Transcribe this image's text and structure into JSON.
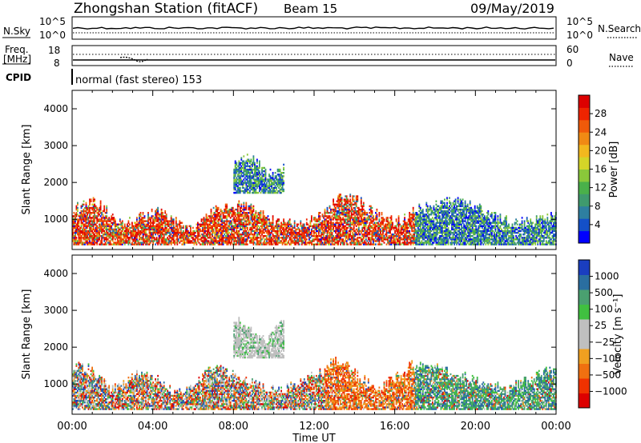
{
  "header": {
    "station": "Zhongshan Station (fitACF)",
    "beam": "Beam 15",
    "date": "09/May/2019"
  },
  "top_panels": {
    "nsky": {
      "label": "N.Sky",
      "left_ticks": [
        "10^5",
        "10^0"
      ],
      "right_ticks": [
        "10^5",
        "10^0"
      ],
      "right_label": "N.Search"
    },
    "freq": {
      "label_line1": "Freq.",
      "label_line2": "[MHz]",
      "left_ticks": [
        "18",
        "8"
      ],
      "right_ticks": [
        "60",
        "0"
      ],
      "right_label": "Nave"
    },
    "cpid": {
      "label": "CPID",
      "text": "normal (fast stereo) 153"
    }
  },
  "time_axis": {
    "ticks": [
      "00:00",
      "04:00",
      "08:00",
      "12:00",
      "16:00",
      "20:00",
      "00:00"
    ],
    "label": "Time UT"
  },
  "chart_data": [
    {
      "type": "heatmap",
      "quantity": "power",
      "ylabel": "Slant Range [km]",
      "ylim": [
        180,
        4500
      ],
      "yticks": [
        1000,
        2000,
        3000,
        4000
      ],
      "xlim_hours": [
        0,
        24
      ],
      "colorbar": {
        "label": "Power [dB]",
        "ticks": [
          "28",
          "24",
          "20",
          "16",
          "12",
          "8",
          "4"
        ],
        "range": [
          0,
          30
        ],
        "colors": [
          "#0000ff",
          "#1450c8",
          "#2e7fa0",
          "#3f9a6e",
          "#4ab04a",
          "#8ac83a",
          "#d4d428",
          "#f2b81e",
          "#f08a14",
          "#f05a0a",
          "#ee2400",
          "#dd0000"
        ]
      },
      "echo_regions": [
        {
          "t_start": 0.0,
          "t_end": 3.5,
          "r_min": 300,
          "r_max": 1600,
          "level": "high"
        },
        {
          "t_start": 3.5,
          "t_end": 6.5,
          "r_min": 300,
          "r_max": 1300,
          "level": "high"
        },
        {
          "t_start": 6.5,
          "t_end": 12.5,
          "r_min": 300,
          "r_max": 1500,
          "level": "high"
        },
        {
          "t_start": 8.0,
          "t_end": 10.5,
          "r_min": 1700,
          "r_max": 2800,
          "level": "low"
        },
        {
          "t_start": 12.5,
          "t_end": 17.0,
          "r_min": 300,
          "r_max": 1700,
          "level": "high"
        },
        {
          "t_start": 17.0,
          "t_end": 24.0,
          "r_min": 300,
          "r_max": 1600,
          "level": "low"
        }
      ]
    },
    {
      "type": "heatmap",
      "quantity": "velocity",
      "ylabel": "Slant Range [km]",
      "ylim": [
        180,
        4500
      ],
      "yticks": [
        1000,
        2000,
        3000,
        4000
      ],
      "xlim_hours": [
        0,
        24
      ],
      "colorbar": {
        "label": "Velocity [m s⁻¹]",
        "ticks": [
          "1000",
          "500",
          "100",
          "25",
          "−25",
          "−100",
          "−500",
          "−1000"
        ],
        "range": [
          -1200,
          1200
        ],
        "colors": [
          "#dd0000",
          "#f03200",
          "#f07010",
          "#f0a020",
          "#bfbfbf",
          "#bfbfbf",
          "#40c040",
          "#4aa070",
          "#2a6ea0",
          "#1a3ec0"
        ]
      },
      "echo_regions": [
        {
          "t_start": 0.0,
          "t_end": 3.5,
          "r_min": 300,
          "r_max": 1600,
          "level": "mixed"
        },
        {
          "t_start": 3.5,
          "t_end": 6.5,
          "r_min": 300,
          "r_max": 1300,
          "level": "mixed"
        },
        {
          "t_start": 6.5,
          "t_end": 12.5,
          "r_min": 300,
          "r_max": 1500,
          "level": "mixed"
        },
        {
          "t_start": 8.0,
          "t_end": 10.5,
          "r_min": 1700,
          "r_max": 2800,
          "level": "near-zero"
        },
        {
          "t_start": 12.5,
          "t_end": 17.0,
          "r_min": 300,
          "r_max": 1700,
          "level": "negative"
        },
        {
          "t_start": 17.0,
          "t_end": 24.0,
          "r_min": 300,
          "r_max": 1600,
          "level": "positive"
        }
      ]
    }
  ]
}
